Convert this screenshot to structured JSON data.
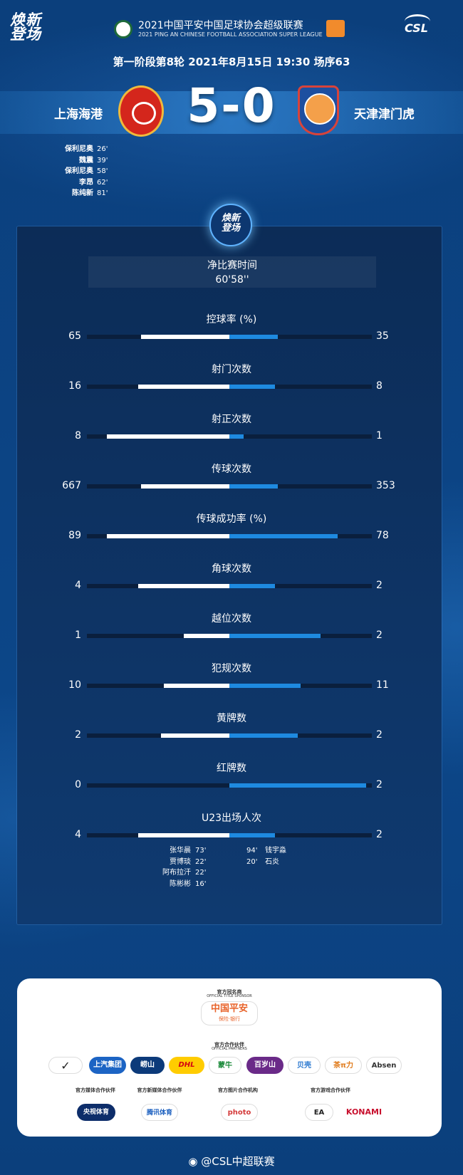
{
  "header": {
    "brand_left": "焕新\n登场",
    "league_cn": "2021中国平安中国足球协会超级联赛",
    "league_en": "2021 PING AN CHINESE FOOTBALL ASSOCIATION SUPER LEAGUE",
    "csl_logo": "CSL",
    "match_info": "第一阶段第8轮  2021年8月15日 19:30 场序63"
  },
  "match": {
    "home_team": "上海海港",
    "away_team": "天津津门虎",
    "score": "5-0",
    "home_scorers": [
      {
        "name": "保利尼奥",
        "minute": "26'"
      },
      {
        "name": "魏震",
        "minute": "39'"
      },
      {
        "name": "保利尼奥",
        "minute": "58'"
      },
      {
        "name": "李昂",
        "minute": "62'"
      },
      {
        "name": "陈纯新",
        "minute": "81'"
      }
    ]
  },
  "panel": {
    "badge": "焕新\n登场",
    "net_time_label": "净比赛时间",
    "net_time_value": "60'58''",
    "stats": [
      {
        "label": "控球率 (%)",
        "home": "65",
        "away": "35",
        "home_frac": 0.31,
        "away_frac": 0.17
      },
      {
        "label": "射门次数",
        "home": "16",
        "away": "8",
        "home_frac": 0.32,
        "away_frac": 0.16
      },
      {
        "label": "射正次数",
        "home": "8",
        "away": "1",
        "home_frac": 0.43,
        "away_frac": 0.05
      },
      {
        "label": "传球次数",
        "home": "667",
        "away": "353",
        "home_frac": 0.31,
        "away_frac": 0.17
      },
      {
        "label": "传球成功率 (%)",
        "home": "89",
        "away": "78",
        "home_frac": 0.43,
        "away_frac": 0.38
      },
      {
        "label": "角球次数",
        "home": "4",
        "away": "2",
        "home_frac": 0.32,
        "away_frac": 0.16
      },
      {
        "label": "越位次数",
        "home": "1",
        "away": "2",
        "home_frac": 0.16,
        "away_frac": 0.32
      },
      {
        "label": "犯规次数",
        "home": "10",
        "away": "11",
        "home_frac": 0.23,
        "away_frac": 0.25
      },
      {
        "label": "黄牌数",
        "home": "2",
        "away": "2",
        "home_frac": 0.24,
        "away_frac": 0.24
      },
      {
        "label": "红牌数",
        "home": "0",
        "away": "2",
        "home_frac": 0.0,
        "away_frac": 0.48
      },
      {
        "label": "U23出场人次",
        "home": "4",
        "away": "2",
        "home_frac": 0.32,
        "away_frac": 0.16
      }
    ],
    "u23_home": [
      {
        "name": "张华晨",
        "minute": "73'"
      },
      {
        "name": "贾博琰",
        "minute": "22'"
      },
      {
        "name": "阿布拉汗",
        "minute": "22'"
      },
      {
        "name": "陈彬彬",
        "minute": "16'"
      }
    ],
    "u23_away": [
      {
        "name": "钱宇淼",
        "minute": "94'"
      },
      {
        "name": "石炎",
        "minute": "20'"
      }
    ]
  },
  "sponsors": {
    "title_sponsor_label": "官方冠名商",
    "title_sponsor_en": "OFFICIAL TITLE SPONSOR",
    "title_sponsor_name": "中国平安",
    "title_sponsor_sub": "保险·银行",
    "partners_label": "官方合作伙伴",
    "partners_en": "OFFICIAL PARTNERS",
    "partners": [
      "上汽集团",
      "崂山",
      "DHL",
      "蒙牛",
      "百岁山",
      "贝壳",
      "茶π力",
      "Absen"
    ],
    "media_label": "官方媒体合作伙伴",
    "media_name": "央视体育",
    "newmedia_label": "官方新媒体合作伙伴",
    "newmedia_name": "腾讯体育",
    "photo_label": "官方图片合作机构",
    "photo_name": "photo",
    "game_label": "官方游戏合作伙伴",
    "game_names": [
      "EA",
      "KONAMI"
    ]
  },
  "footer": {
    "weibo": "@CSL中超联赛"
  }
}
